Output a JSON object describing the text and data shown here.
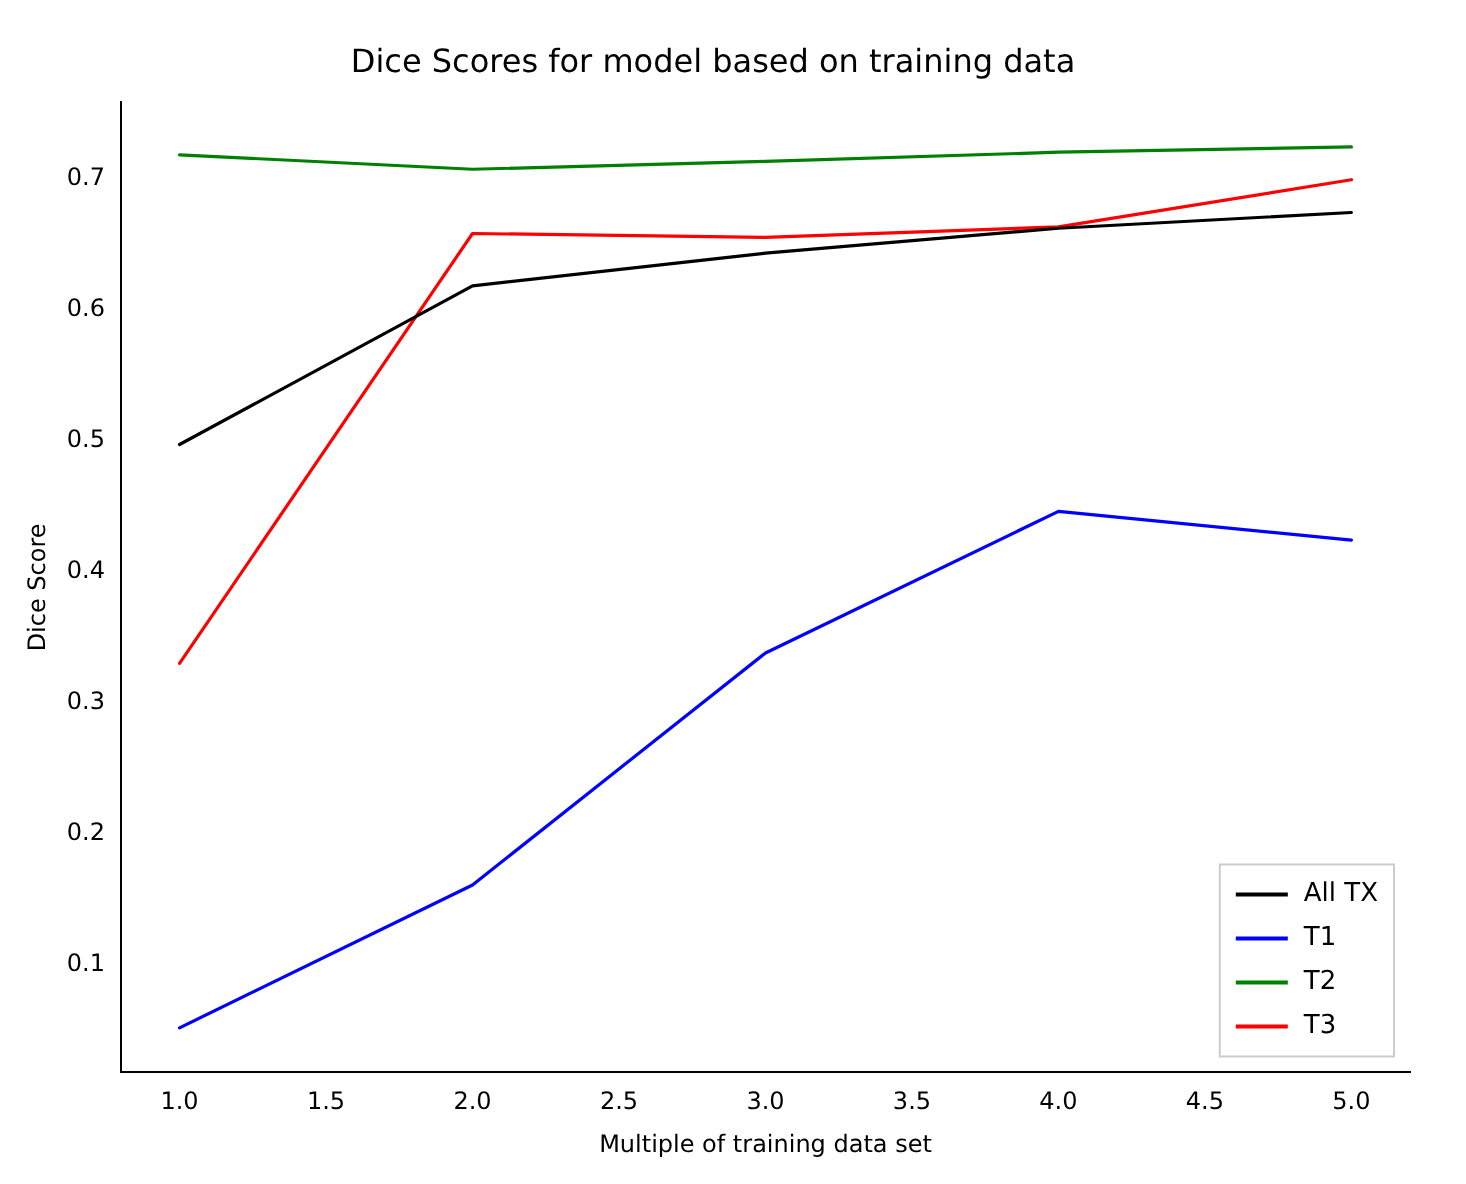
{
  "chart_data": {
    "type": "line",
    "title": "Dice Scores for model based on training data",
    "xlabel": "Multiple of training data set",
    "ylabel": "Dice Score",
    "x": [
      1,
      2,
      3,
      4,
      5
    ],
    "series": [
      {
        "name": "All TX",
        "color": "#000000",
        "values": [
          0.497,
          0.618,
          0.643,
          0.662,
          0.674
        ]
      },
      {
        "name": "T1",
        "color": "#0000ff",
        "values": [
          0.052,
          0.161,
          0.338,
          0.446,
          0.424
        ]
      },
      {
        "name": "T2",
        "color": "#008000",
        "values": [
          0.718,
          0.707,
          0.713,
          0.72,
          0.724
        ]
      },
      {
        "name": "T3",
        "color": "#ff0000",
        "values": [
          0.33,
          0.658,
          0.655,
          0.663,
          0.699
        ]
      }
    ],
    "xlim": [
      0.8,
      5.2
    ],
    "xticks": [
      {
        "value": 1,
        "label": "1.0"
      },
      {
        "value": 1.5,
        "label": "1.5"
      },
      {
        "value": 2,
        "label": "2.0"
      },
      {
        "value": 2.5,
        "label": "2.5"
      },
      {
        "value": 3,
        "label": "3.0"
      },
      {
        "value": 3.5,
        "label": "3.5"
      },
      {
        "value": 4,
        "label": "4.0"
      },
      {
        "value": 4.5,
        "label": "4.5"
      },
      {
        "value": 5,
        "label": "5.0"
      }
    ],
    "ylim": [
      0.018,
      0.758
    ],
    "yticks": [
      0.1,
      0.2,
      0.3,
      0.4,
      0.5,
      0.6,
      0.7
    ],
    "legend": "bottom right",
    "grid": false,
    "marker": "none",
    "line_style": "solid"
  }
}
